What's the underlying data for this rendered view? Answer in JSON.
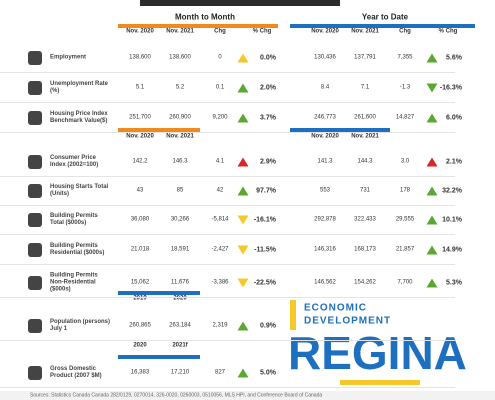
{
  "sections": [
    "Month to Month",
    "Year to Date"
  ],
  "column_headers": {
    "month": [
      "Nov. 2020",
      "Nov. 2021",
      "Chg",
      "% Chg"
    ],
    "ytd": [
      "Nov. 2020",
      "Nov. 2021",
      "Chg",
      "% Chg"
    ]
  },
  "subheaders": [
    {
      "month": [
        "Nov. 2020",
        "Nov. 2021"
      ],
      "ytd": [
        "Nov. 2020",
        "Nov. 2021"
      ],
      "color": "#f08a1e",
      "ytd_color": "#1d6fbf"
    },
    {
      "month": [
        "2019",
        "2020"
      ],
      "color": "#1d6fbf"
    },
    {
      "month": [
        "2020",
        "2021f"
      ],
      "color": "#1d6fbf"
    }
  ],
  "rows": [
    {
      "label": "Employment",
      "month": [
        "138,600",
        "138,600",
        "0",
        "0.0%"
      ],
      "month_arrow": {
        "dir": "up",
        "color": "#f6c82a"
      },
      "ytd": [
        "130,436",
        "137,791",
        "7,355",
        "5.6%"
      ],
      "ytd_arrow": {
        "dir": "up",
        "color": "#5aa832"
      }
    },
    {
      "label": "Unemployment Rate (%)",
      "month": [
        "5.1",
        "5.2",
        "0.1",
        "2.0%"
      ],
      "month_arrow": {
        "dir": "up",
        "color": "#5aa832"
      },
      "ytd": [
        "8.4",
        "7.1",
        "-1.3",
        "-16.3%"
      ],
      "ytd_arrow": {
        "dir": "down",
        "color": "#5aa832"
      }
    },
    {
      "label": "Housing Price Index Benchmark Value($)",
      "month": [
        "251,700",
        "260,900",
        "9,200",
        "3.7%"
      ],
      "month_arrow": {
        "dir": "up",
        "color": "#5aa832"
      },
      "ytd": [
        "246,773",
        "261,600",
        "14,827",
        "6.0%"
      ],
      "ytd_arrow": {
        "dir": "up",
        "color": "#5aa832"
      }
    },
    {
      "label": "Consumer Price Index (2002=100)",
      "month": [
        "142.2",
        "146.3",
        "4.1",
        "2.9%"
      ],
      "month_arrow": {
        "dir": "up",
        "color": "#d9262a"
      },
      "ytd": [
        "141.3",
        "144.3",
        "3.0",
        "2.1%"
      ],
      "ytd_arrow": {
        "dir": "up",
        "color": "#d9262a"
      }
    },
    {
      "label": "Housing Starts Total (Units)",
      "month": [
        "43",
        "85",
        "42",
        "97.7%"
      ],
      "month_arrow": {
        "dir": "up",
        "color": "#5aa832"
      },
      "ytd": [
        "553",
        "731",
        "178",
        "32.2%"
      ],
      "ytd_arrow": {
        "dir": "up",
        "color": "#5aa832"
      }
    },
    {
      "label": "Building Permits Total ($000s)",
      "month": [
        "36,080",
        "30,266",
        "-5,814",
        "-16.1%"
      ],
      "month_arrow": {
        "dir": "down",
        "color": "#f6c82a"
      },
      "ytd": [
        "292,878",
        "322,433",
        "29,555",
        "10.1%"
      ],
      "ytd_arrow": {
        "dir": "up",
        "color": "#5aa832"
      }
    },
    {
      "label": "Building Permits Residential ($000s)",
      "month": [
        "21,018",
        "18,591",
        "-2,427",
        "-11.5%"
      ],
      "month_arrow": {
        "dir": "down",
        "color": "#f6c82a"
      },
      "ytd": [
        "146,316",
        "168,173",
        "21,857",
        "14.9%"
      ],
      "ytd_arrow": {
        "dir": "up",
        "color": "#5aa832"
      }
    },
    {
      "label": "Building Permits Non-Residential ($000s)",
      "month": [
        "15,062",
        "11,676",
        "-3,386",
        "-22.5%"
      ],
      "month_arrow": {
        "dir": "down",
        "color": "#f6c82a"
      },
      "ytd": [
        "146,562",
        "154,262",
        "7,700",
        "5.3%"
      ],
      "ytd_arrow": {
        "dir": "up",
        "color": "#5aa832"
      }
    },
    {
      "label": "Population (persons) July 1",
      "month": [
        "260,865",
        "263,184",
        "2,319",
        "0.9%"
      ],
      "month_arrow": {
        "dir": "up",
        "color": "#5aa832"
      }
    },
    {
      "label": "Gross Domestic Product (2007 $M)",
      "month": [
        "16,383",
        "17,210",
        "827",
        "5.0%"
      ],
      "month_arrow": {
        "dir": "up",
        "color": "#5aa832"
      }
    }
  ],
  "logo": {
    "line1": "ECONOMIC",
    "line2": "DEVELOPMENT",
    "wordmark": "REGINA"
  },
  "sources": "Sources: Statistics Canada Canada 282/0129, 0270014, 326-0020, 0260003, 0510056, MLS HPI, and Conference Board of Canada"
}
